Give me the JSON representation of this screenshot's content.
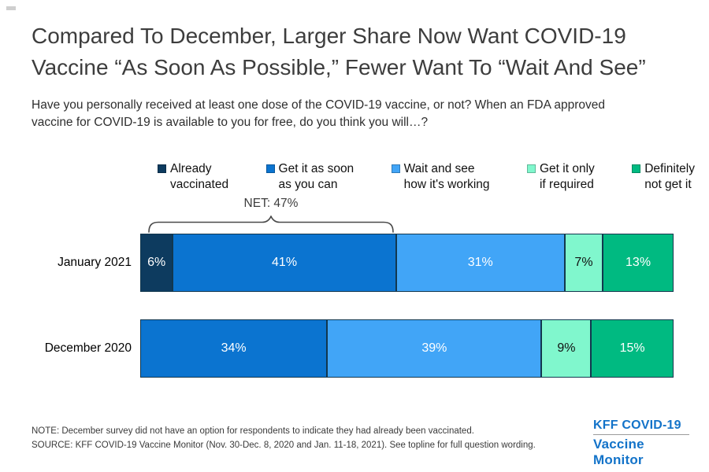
{
  "page": {
    "title_line1": "Compared To December, Larger Share Now Want COVID-19",
    "title_line2": "Vaccine “As Soon As Possible,” Fewer Want To “Wait And See”",
    "question_line1": "Have you personally received at least one dose of the COVID-19 vaccine, or not? When an FDA approved",
    "question_line2": "vaccine for COVID-19 is available to you for free, do you think you will…?"
  },
  "legend": {
    "items": [
      {
        "line1": "Already",
        "line2": "vaccinated",
        "color": "#0d3b5f"
      },
      {
        "line1": "Get it as soon",
        "line2": "as you can",
        "color": "#0b74d0"
      },
      {
        "line1": "Wait and see",
        "line2": "how it's working",
        "color": "#41a5f7"
      },
      {
        "line1": "Get it only",
        "line2": "if required",
        "color": "#80f7cd"
      },
      {
        "line1": "Definitely",
        "line2": "not get it",
        "color": "#00ba81"
      }
    ]
  },
  "chart_data": {
    "type": "bar",
    "subtype": "stacked-horizontal",
    "value_format": "percent",
    "legend_position": "top",
    "grid": false,
    "axis": "none",
    "categories": [
      "January 2021",
      "December 2020"
    ],
    "series": [
      {
        "name": "Already vaccinated",
        "color": "#0d3b5f",
        "label_color": "#ffffff",
        "values": [
          6,
          null
        ]
      },
      {
        "name": "Get it as soon as you can",
        "color": "#0b74d0",
        "label_color": "#ffffff",
        "values": [
          41,
          34
        ]
      },
      {
        "name": "Wait and see how it's working",
        "color": "#41a5f7",
        "label_color": "#ffffff",
        "values": [
          31,
          39
        ]
      },
      {
        "name": "Get it only if required",
        "color": "#80f7cd",
        "label_color": "#111111",
        "values": [
          7,
          9
        ]
      },
      {
        "name": "Definitely not get it",
        "color": "#00ba81",
        "label_color": "#ffffff",
        "values": [
          13,
          15
        ]
      }
    ],
    "annotation": {
      "label": "NET: 47%",
      "category": "January 2021",
      "covers": [
        "Already vaccinated",
        "Get it as soon as you can"
      ]
    }
  },
  "footer": {
    "note": "NOTE: December survey did not have an option for respondents to indicate they had already been vaccinated.",
    "source": "SOURCE: KFF COVID-19 Vaccine Monitor (Nov. 30-Dec. 8, 2020 and Jan. 11-18, 2021). See topline for full question wording."
  },
  "logo": {
    "line1": "KFF COVID-19",
    "line2": "Vaccine Monitor",
    "color": "#1373c9"
  }
}
